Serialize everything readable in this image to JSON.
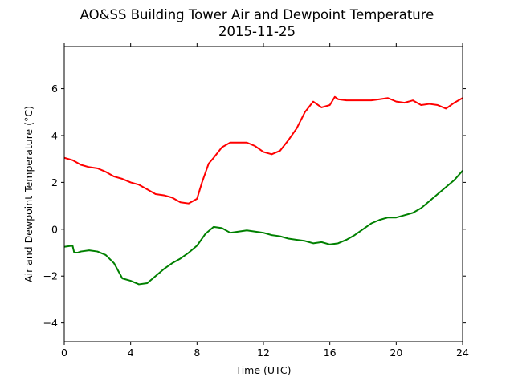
{
  "chart_data": {
    "type": "line",
    "title": "AO&SS Building Tower Air and Dewpoint Temperature",
    "subtitle": "2015-11-25",
    "xlabel": "Time (UTC)",
    "ylabel": "Air and Dewpoint Temperature (°C)",
    "xlim": [
      0,
      24
    ],
    "ylim": [
      -4.8,
      7.8
    ],
    "xticks": [
      0,
      4,
      8,
      12,
      16,
      20,
      24
    ],
    "yticks": [
      -4,
      -2,
      0,
      2,
      4,
      6
    ],
    "xtick_labels": [
      "0",
      "4",
      "8",
      "12",
      "16",
      "20",
      "24"
    ],
    "ytick_labels": [
      "−4",
      "−2",
      "0",
      "2",
      "4",
      "6"
    ],
    "grid": false,
    "series": [
      {
        "color": "#ff0000",
        "x": [
          0,
          0.5,
          1,
          1.5,
          2,
          2.5,
          3,
          3.5,
          4,
          4.5,
          5,
          5.5,
          6,
          6.5,
          7,
          7.5,
          8,
          8.3,
          8.7,
          9,
          9.5,
          10,
          10.5,
          11,
          11.5,
          12,
          12.5,
          13,
          13.5,
          14,
          14.5,
          15,
          15.5,
          16,
          16.3,
          16.5,
          17,
          17.5,
          18,
          18.5,
          19,
          19.5,
          20,
          20.5,
          21,
          21.5,
          22,
          22.5,
          23,
          23.5,
          24
        ],
        "y": [
          3.05,
          2.95,
          2.75,
          2.65,
          2.6,
          2.45,
          2.25,
          2.15,
          2.0,
          1.9,
          1.7,
          1.5,
          1.45,
          1.35,
          1.15,
          1.1,
          1.3,
          2.0,
          2.8,
          3.05,
          3.5,
          3.7,
          3.7,
          3.7,
          3.55,
          3.3,
          3.2,
          3.35,
          3.8,
          4.3,
          5.0,
          5.45,
          5.2,
          5.3,
          5.65,
          5.55,
          5.5,
          5.5,
          5.5,
          5.5,
          5.55,
          5.6,
          5.45,
          5.4,
          5.5,
          5.3,
          5.35,
          5.3,
          5.15,
          5.4,
          5.6
        ]
      },
      {
        "color": "#008000",
        "x": [
          0,
          0.5,
          0.6,
          0.8,
          1,
          1.5,
          2,
          2.5,
          3,
          3.5,
          4,
          4.5,
          5,
          5.5,
          6,
          6.5,
          7,
          7.5,
          8,
          8.5,
          9,
          9.5,
          10,
          10.5,
          11,
          11.5,
          12,
          12.5,
          13,
          13.5,
          14,
          14.5,
          15,
          15.5,
          16,
          16.5,
          17,
          17.5,
          18,
          18.5,
          19,
          19.5,
          20,
          20.5,
          21,
          21.5,
          22,
          22.5,
          23,
          23.5,
          24
        ],
        "y": [
          -0.75,
          -0.7,
          -1.0,
          -1.0,
          -0.95,
          -0.9,
          -0.95,
          -1.1,
          -1.45,
          -2.1,
          -2.2,
          -2.35,
          -2.3,
          -2.0,
          -1.7,
          -1.45,
          -1.25,
          -1.0,
          -0.7,
          -0.2,
          0.1,
          0.05,
          -0.15,
          -0.1,
          -0.05,
          -0.1,
          -0.15,
          -0.25,
          -0.3,
          -0.4,
          -0.45,
          -0.5,
          -0.6,
          -0.55,
          -0.65,
          -0.6,
          -0.45,
          -0.25,
          0.0,
          0.25,
          0.4,
          0.5,
          0.5,
          0.6,
          0.7,
          0.9,
          1.2,
          1.5,
          1.8,
          2.1,
          2.5
        ]
      }
    ]
  }
}
